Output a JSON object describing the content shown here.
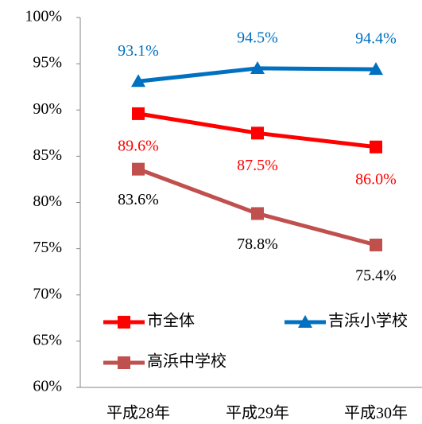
{
  "chart_data": {
    "type": "line",
    "categories": [
      "平成28年",
      "平成29年",
      "平成30年"
    ],
    "series": [
      {
        "name": "市全体",
        "color": "#ff0000",
        "marker": "square",
        "label_color": "#ff0000",
        "values": [
          89.6,
          87.5,
          86.0
        ],
        "value_labels": [
          "89.6%",
          "87.5%",
          "86.0%"
        ]
      },
      {
        "name": "吉浜小学校",
        "color": "#0070c0",
        "marker": "triangle",
        "label_color": "#0070c0",
        "values": [
          93.1,
          94.5,
          94.4
        ],
        "value_labels": [
          "93.1%",
          "94.5%",
          "94.4%"
        ]
      },
      {
        "name": "高浜中学校",
        "color": "#c0504d",
        "marker": "square",
        "label_color": "#000000",
        "values": [
          83.6,
          78.8,
          75.4
        ],
        "value_labels": [
          "83.6%",
          "78.8%",
          "75.4%"
        ]
      }
    ],
    "ylim": [
      60,
      100
    ],
    "yticks": [
      {
        "value": 60,
        "label": "60%"
      },
      {
        "value": 65,
        "label": "65%"
      },
      {
        "value": 70,
        "label": "70%"
      },
      {
        "value": 75,
        "label": "75%"
      },
      {
        "value": 80,
        "label": "80%"
      },
      {
        "value": 85,
        "label": "85%"
      },
      {
        "value": 90,
        "label": "90%"
      },
      {
        "value": 95,
        "label": "95%"
      },
      {
        "value": 100,
        "label": "100%"
      }
    ],
    "grid": false,
    "legend": "inside-bottom"
  }
}
